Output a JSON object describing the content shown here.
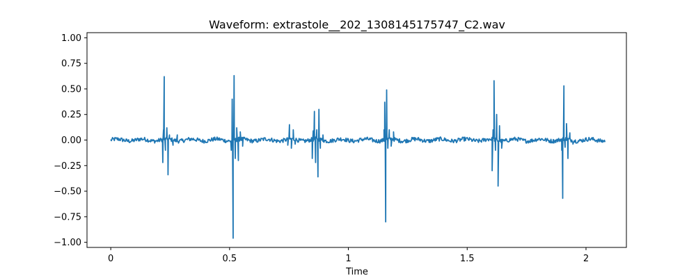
{
  "chart_data": {
    "type": "line",
    "title": "Waveform: extrastole__202_1308145175747_C2.wav",
    "xlabel": "Time",
    "ylabel": "",
    "xlim": [
      -0.1,
      2.17
    ],
    "ylim": [
      -1.05,
      1.05
    ],
    "x_ticks": [
      {
        "value": 0,
        "label": "0"
      },
      {
        "value": 0.5,
        "label": "0.5"
      },
      {
        "value": 1,
        "label": "1"
      },
      {
        "value": 1.5,
        "label": "1.5"
      },
      {
        "value": 2,
        "label": "2"
      }
    ],
    "y_ticks": [
      {
        "value": 1.0,
        "label": "1.00"
      },
      {
        "value": 0.75,
        "label": "0.75"
      },
      {
        "value": 0.5,
        "label": "0.50"
      },
      {
        "value": 0.25,
        "label": "0.25"
      },
      {
        "value": 0.0,
        "label": "0.00"
      },
      {
        "value": -0.25,
        "label": "−0.25"
      },
      {
        "value": -0.5,
        "label": "−0.50"
      },
      {
        "value": -0.75,
        "label": "−0.75"
      },
      {
        "value": -1.0,
        "label": "−1.00"
      }
    ],
    "grid": false,
    "series": [
      {
        "color": "#1f77b4",
        "x_start": 0.0,
        "x_end": 2.08,
        "baseline_noise": 0.02,
        "events": [
          {
            "x": 0.219,
            "y": -0.22
          },
          {
            "x": 0.222,
            "y": 0.1
          },
          {
            "x": 0.225,
            "y": 0.62
          },
          {
            "x": 0.23,
            "y": -0.1
          },
          {
            "x": 0.236,
            "y": 0.12
          },
          {
            "x": 0.241,
            "y": -0.34
          },
          {
            "x": 0.247,
            "y": 0.05
          },
          {
            "x": 0.262,
            "y": -0.05
          },
          {
            "x": 0.28,
            "y": 0.05
          },
          {
            "x": 0.507,
            "y": -0.1
          },
          {
            "x": 0.511,
            "y": 0.4
          },
          {
            "x": 0.515,
            "y": -0.96
          },
          {
            "x": 0.519,
            "y": 0.63
          },
          {
            "x": 0.524,
            "y": -0.18
          },
          {
            "x": 0.53,
            "y": 0.12
          },
          {
            "x": 0.537,
            "y": -0.2
          },
          {
            "x": 0.545,
            "y": 0.08
          },
          {
            "x": 0.555,
            "y": -0.06
          },
          {
            "x": 0.745,
            "y": -0.05
          },
          {
            "x": 0.752,
            "y": 0.15
          },
          {
            "x": 0.76,
            "y": -0.08
          },
          {
            "x": 0.768,
            "y": 0.1
          },
          {
            "x": 0.776,
            "y": -0.04
          },
          {
            "x": 0.848,
            "y": -0.18
          },
          {
            "x": 0.852,
            "y": 0.09
          },
          {
            "x": 0.857,
            "y": 0.28
          },
          {
            "x": 0.862,
            "y": -0.22
          },
          {
            "x": 0.867,
            "y": 0.1
          },
          {
            "x": 0.872,
            "y": -0.36
          },
          {
            "x": 0.876,
            "y": 0.3
          },
          {
            "x": 0.882,
            "y": -0.08
          },
          {
            "x": 0.893,
            "y": 0.05
          },
          {
            "x": 1.15,
            "y": 0.1
          },
          {
            "x": 1.153,
            "y": 0.37
          },
          {
            "x": 1.157,
            "y": -0.8
          },
          {
            "x": 1.161,
            "y": 0.49
          },
          {
            "x": 1.166,
            "y": -0.08
          },
          {
            "x": 1.172,
            "y": 0.1
          },
          {
            "x": 1.18,
            "y": -0.06
          },
          {
            "x": 1.19,
            "y": 0.08
          },
          {
            "x": 1.605,
            "y": -0.3
          },
          {
            "x": 1.609,
            "y": 0.1
          },
          {
            "x": 1.613,
            "y": 0.58
          },
          {
            "x": 1.619,
            "y": -0.1
          },
          {
            "x": 1.624,
            "y": 0.25
          },
          {
            "x": 1.63,
            "y": -0.45
          },
          {
            "x": 1.636,
            "y": 0.14
          },
          {
            "x": 1.645,
            "y": -0.08
          },
          {
            "x": 1.898,
            "y": -0.1
          },
          {
            "x": 1.902,
            "y": -0.57
          },
          {
            "x": 1.907,
            "y": 0.53
          },
          {
            "x": 1.912,
            "y": -0.07
          },
          {
            "x": 1.918,
            "y": 0.16
          },
          {
            "x": 1.924,
            "y": -0.18
          },
          {
            "x": 1.932,
            "y": 0.07
          },
          {
            "x": 1.945,
            "y": -0.04
          }
        ]
      }
    ]
  }
}
